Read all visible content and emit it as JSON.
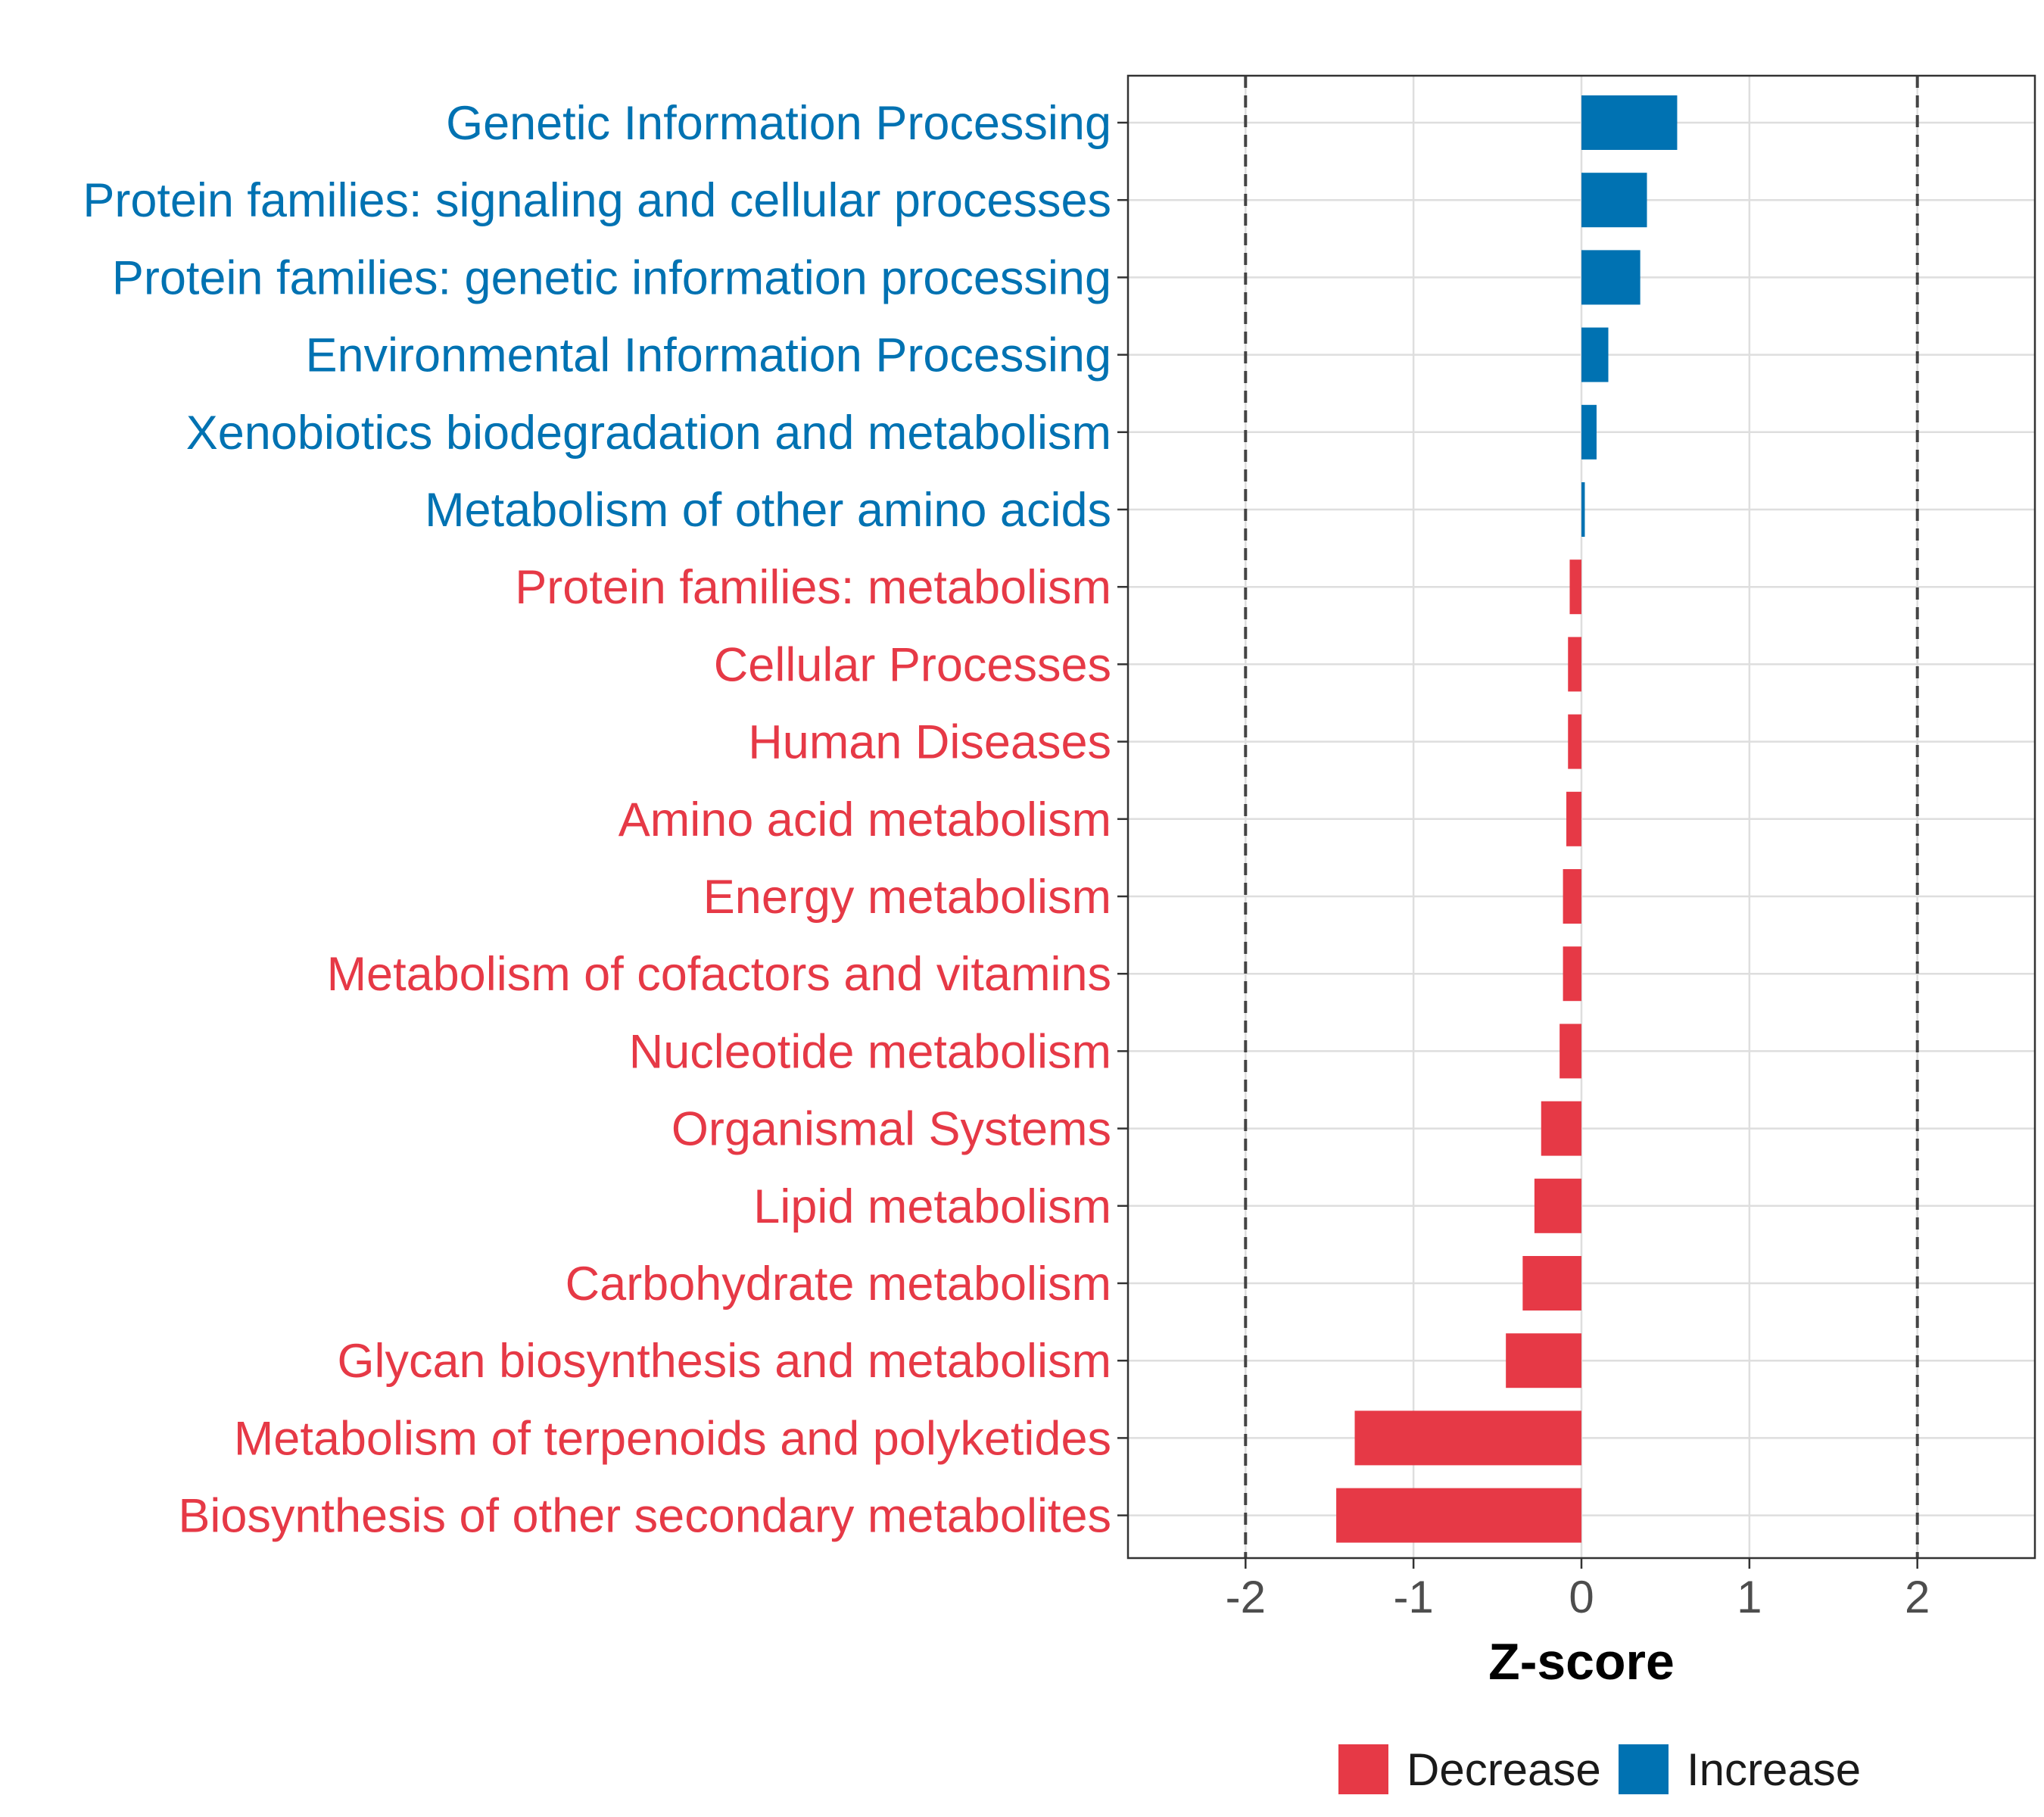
{
  "chart_data": {
    "type": "bar",
    "orientation": "horizontal",
    "xlabel": "Z-score",
    "ylabel": "",
    "xlim": [
      -2.7,
      2.7
    ],
    "xticks": [
      -2,
      -1,
      0,
      1,
      2
    ],
    "x_tick_labels": [
      "-2",
      "-1",
      "0",
      "1",
      "2"
    ],
    "reference_lines": [
      -2,
      2
    ],
    "grid": true,
    "legend_position": "bottom",
    "legend": [
      {
        "label": "Decrease",
        "color": "#E63946"
      },
      {
        "label": "Increase",
        "color": "#0072B2"
      }
    ],
    "categories": [
      "Genetic Information Processing",
      "Protein families: signaling and cellular processes",
      "Protein families: genetic information processing",
      "Environmental Information Processing",
      "Xenobiotics biodegradation and metabolism",
      "Metabolism of other amino acids",
      "Protein families: metabolism",
      "Cellular Processes",
      "Human Diseases",
      "Amino acid metabolism",
      "Energy metabolism",
      "Metabolism of cofactors and vitamins",
      "Nucleotide metabolism",
      "Organismal Systems",
      "Lipid metabolism",
      "Carbohydrate metabolism",
      "Glycan biosynthesis and metabolism",
      "Metabolism of terpenoids and polyketides",
      "Biosynthesis of other secondary metabolites"
    ],
    "values": [
      0.57,
      0.39,
      0.35,
      0.16,
      0.09,
      0.02,
      -0.07,
      -0.08,
      -0.08,
      -0.09,
      -0.11,
      -0.11,
      -0.13,
      -0.24,
      -0.28,
      -0.35,
      -0.45,
      -1.35,
      -1.46
    ],
    "groups": [
      "Increase",
      "Increase",
      "Increase",
      "Increase",
      "Increase",
      "Increase",
      "Decrease",
      "Decrease",
      "Decrease",
      "Decrease",
      "Decrease",
      "Decrease",
      "Decrease",
      "Decrease",
      "Decrease",
      "Decrease",
      "Decrease",
      "Decrease",
      "Decrease"
    ]
  }
}
